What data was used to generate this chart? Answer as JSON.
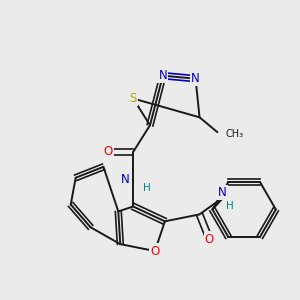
{
  "background_color": "#ebebeb",
  "figsize": [
    3.0,
    3.0
  ],
  "dpi": 100,
  "colors": {
    "N": "#0000cc",
    "S": "#aaaa00",
    "O": "#ff0000",
    "C": "#1a1a1a",
    "H": "#008888"
  }
}
